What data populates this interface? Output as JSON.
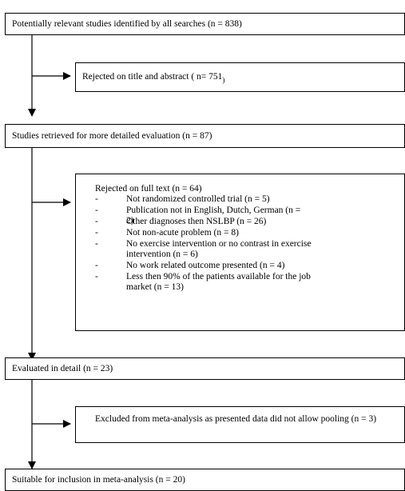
{
  "steps": {
    "identified": "Potentially relevant studies identified by all searches (n = 838)",
    "retrieved": "Studies retrieved for more detailed evaluation (n = 87)",
    "evaluated": "Evaluated in detail (n = 23)",
    "suitable": "Suitable for inclusion in meta-analysis (n = 20)"
  },
  "exclusions": {
    "title_abstract": {
      "text": "Rejected on title and abstract ( n= 751",
      "tail": ")"
    },
    "full_text": {
      "heading": "Rejected on full text (n = 64)",
      "reasons": [
        "Not randomized controlled trial (n = 5)",
        "Publication not in English, Dutch, German (n = 2)",
        "Other diagnoses then NSLBP (n = 26)",
        "Not non-acute problem (n = 8)",
        "No exercise intervention or no contrast in exercise intervention (n = 6)",
        "No work related outcome presented (n = 4)",
        "Less then 90% of the patients available for the job market (n = 13)"
      ]
    },
    "meta": "Excluded from meta-analysis as presented data did not allow pooling (n = 3)"
  },
  "bullet_symbol": "-"
}
